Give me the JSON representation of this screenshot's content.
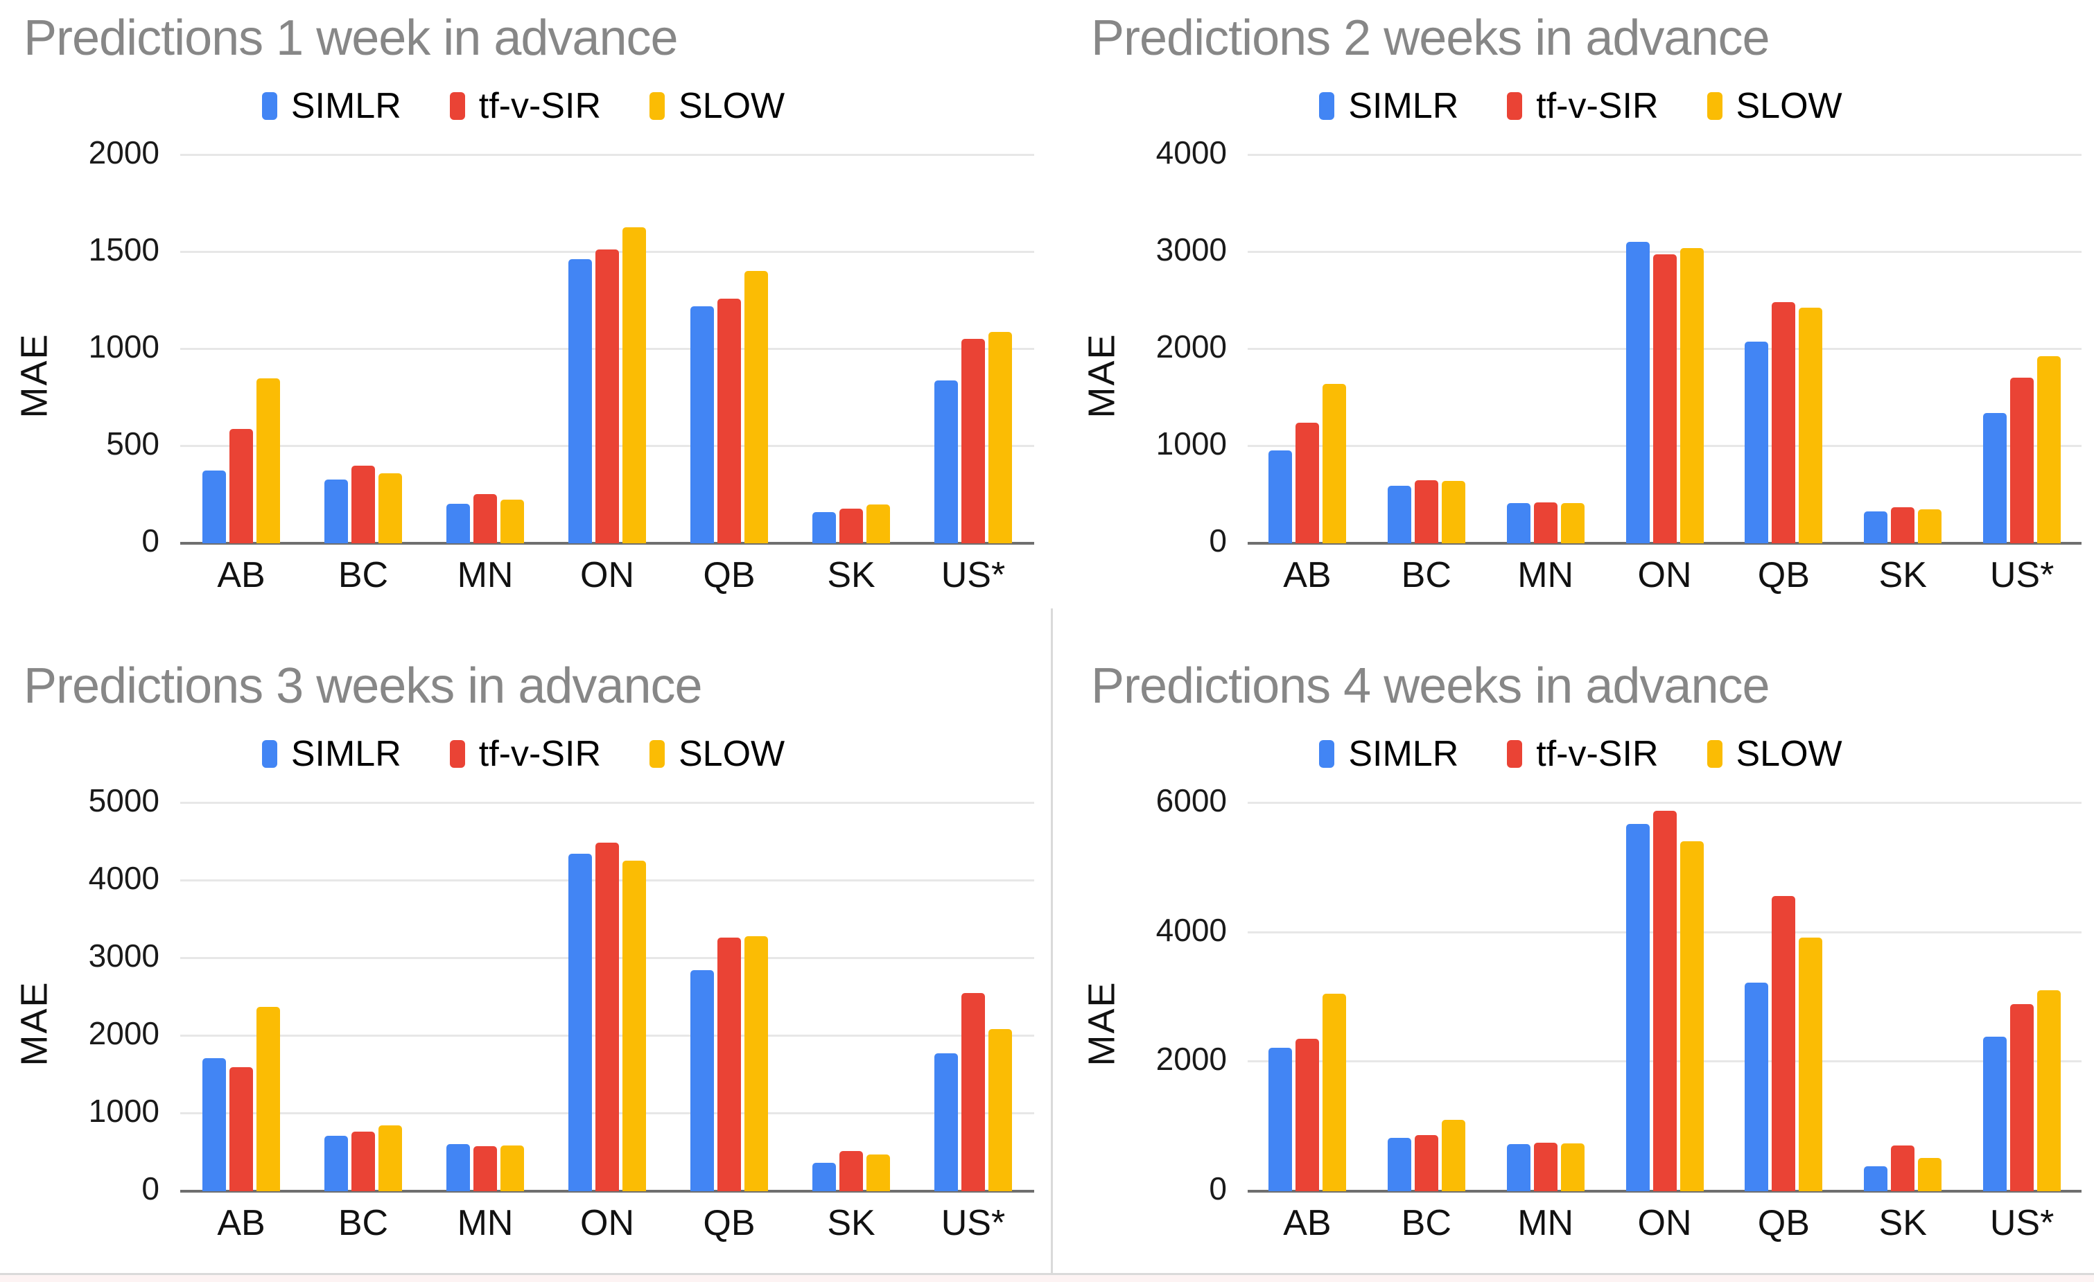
{
  "page": {
    "background": "#ffffff",
    "divider_color": "#dadada",
    "footer_strip_color": "#fdf3f3",
    "title_color": "#878787",
    "gridline_color": "#e7e7e7",
    "baseline_color": "#6f6f6f"
  },
  "palette": {
    "SIMLR": "#4285F4",
    "tf-v-SIR": "#EA4335",
    "SLOW": "#FBBC04"
  },
  "chart_data": [
    {
      "type": "bar",
      "title": "Predictions 1 week in advance",
      "ylabel": "MAE",
      "xlabel": "",
      "grid": true,
      "legend_position": "top",
      "categories": [
        "AB",
        "BC",
        "MN",
        "ON",
        "QB",
        "SK",
        "US*"
      ],
      "ticks": [
        0,
        500,
        1000,
        1500,
        2000
      ],
      "ylim": [
        0,
        2000
      ],
      "series": [
        {
          "name": "SIMLR",
          "color": "#4285F4",
          "values": [
            375,
            330,
            205,
            1465,
            1220,
            160,
            840
          ]
        },
        {
          "name": "tf-v-SIR",
          "color": "#EA4335",
          "values": [
            590,
            400,
            255,
            1515,
            1260,
            180,
            1055
          ]
        },
        {
          "name": "SLOW",
          "color": "#FBBC04",
          "values": [
            850,
            360,
            225,
            1630,
            1405,
            200,
            1090
          ]
        }
      ]
    },
    {
      "type": "bar",
      "title": "Predictions 2 weeks in advance",
      "ylabel": "MAE",
      "xlabel": "",
      "grid": true,
      "legend_position": "top",
      "categories": [
        "AB",
        "BC",
        "MN",
        "ON",
        "QB",
        "SK",
        "US*"
      ],
      "ticks": [
        0,
        1000,
        2000,
        3000,
        4000
      ],
      "ylim": [
        0,
        4000
      ],
      "series": [
        {
          "name": "SIMLR",
          "color": "#4285F4",
          "values": [
            960,
            595,
            415,
            3110,
            2080,
            330,
            1340
          ]
        },
        {
          "name": "tf-v-SIR",
          "color": "#EA4335",
          "values": [
            1240,
            650,
            420,
            2980,
            2485,
            370,
            1710
          ]
        },
        {
          "name": "SLOW",
          "color": "#FBBC04",
          "values": [
            1640,
            645,
            415,
            3040,
            2430,
            350,
            1925
          ]
        }
      ]
    },
    {
      "type": "bar",
      "title": "Predictions 3 weeks in advance",
      "ylabel": "MAE",
      "xlabel": "",
      "grid": true,
      "legend_position": "top",
      "categories": [
        "AB",
        "BC",
        "MN",
        "ON",
        "QB",
        "SK",
        "US*"
      ],
      "ticks": [
        0,
        1000,
        2000,
        3000,
        4000,
        5000
      ],
      "ylim": [
        0,
        5000
      ],
      "series": [
        {
          "name": "SIMLR",
          "color": "#4285F4",
          "values": [
            1710,
            715,
            610,
            4345,
            2845,
            365,
            1775
          ]
        },
        {
          "name": "tf-v-SIR",
          "color": "#EA4335",
          "values": [
            1595,
            765,
            580,
            4490,
            3270,
            520,
            2555
          ]
        },
        {
          "name": "SLOW",
          "color": "#FBBC04",
          "values": [
            2375,
            845,
            590,
            4260,
            3285,
            475,
            2090
          ]
        }
      ]
    },
    {
      "type": "bar",
      "title": "Predictions 4 weeks in advance",
      "ylabel": "MAE",
      "xlabel": "",
      "grid": true,
      "legend_position": "top",
      "categories": [
        "AB",
        "BC",
        "MN",
        "ON",
        "QB",
        "SK",
        "US*"
      ],
      "ticks": [
        0,
        2000,
        4000,
        6000
      ],
      "ylim": [
        0,
        6000
      ],
      "series": [
        {
          "name": "SIMLR",
          "color": "#4285F4",
          "values": [
            2220,
            820,
            730,
            5680,
            3220,
            390,
            2390
          ]
        },
        {
          "name": "tf-v-SIR",
          "color": "#EA4335",
          "values": [
            2360,
            870,
            750,
            5880,
            4560,
            710,
            2890
          ]
        },
        {
          "name": "SLOW",
          "color": "#FBBC04",
          "values": [
            3050,
            1100,
            740,
            5410,
            3920,
            510,
            3110
          ]
        }
      ]
    }
  ]
}
